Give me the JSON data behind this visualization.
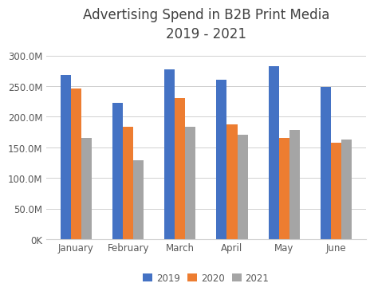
{
  "title": "Advertising Spend in B2B Print Media\n2019 - 2021",
  "categories": [
    "January",
    "February",
    "March",
    "April",
    "May",
    "June"
  ],
  "series": {
    "2019": [
      268000000,
      222000000,
      277000000,
      260000000,
      283000000,
      249000000
    ],
    "2020": [
      246000000,
      184000000,
      230000000,
      188000000,
      166000000,
      157000000
    ],
    "2021": [
      165000000,
      129000000,
      183000000,
      170000000,
      178000000,
      163000000
    ]
  },
  "colors": {
    "2019": "#4472c4",
    "2020": "#ed7d31",
    "2021": "#a5a5a5"
  },
  "ylim": [
    0,
    315000000
  ],
  "yticks": [
    0,
    50000000,
    100000000,
    150000000,
    200000000,
    250000000,
    300000000
  ],
  "ytick_labels": [
    "0K",
    "50.0M",
    "100.0M",
    "150.0M",
    "200.0M",
    "250.0M",
    "300.0M"
  ],
  "legend_labels": [
    "2019",
    "2020",
    "2021"
  ],
  "title_fontsize": 12,
  "tick_fontsize": 8.5,
  "legend_fontsize": 8.5,
  "background_color": "#ffffff",
  "grid_color": "#d0d0d0"
}
